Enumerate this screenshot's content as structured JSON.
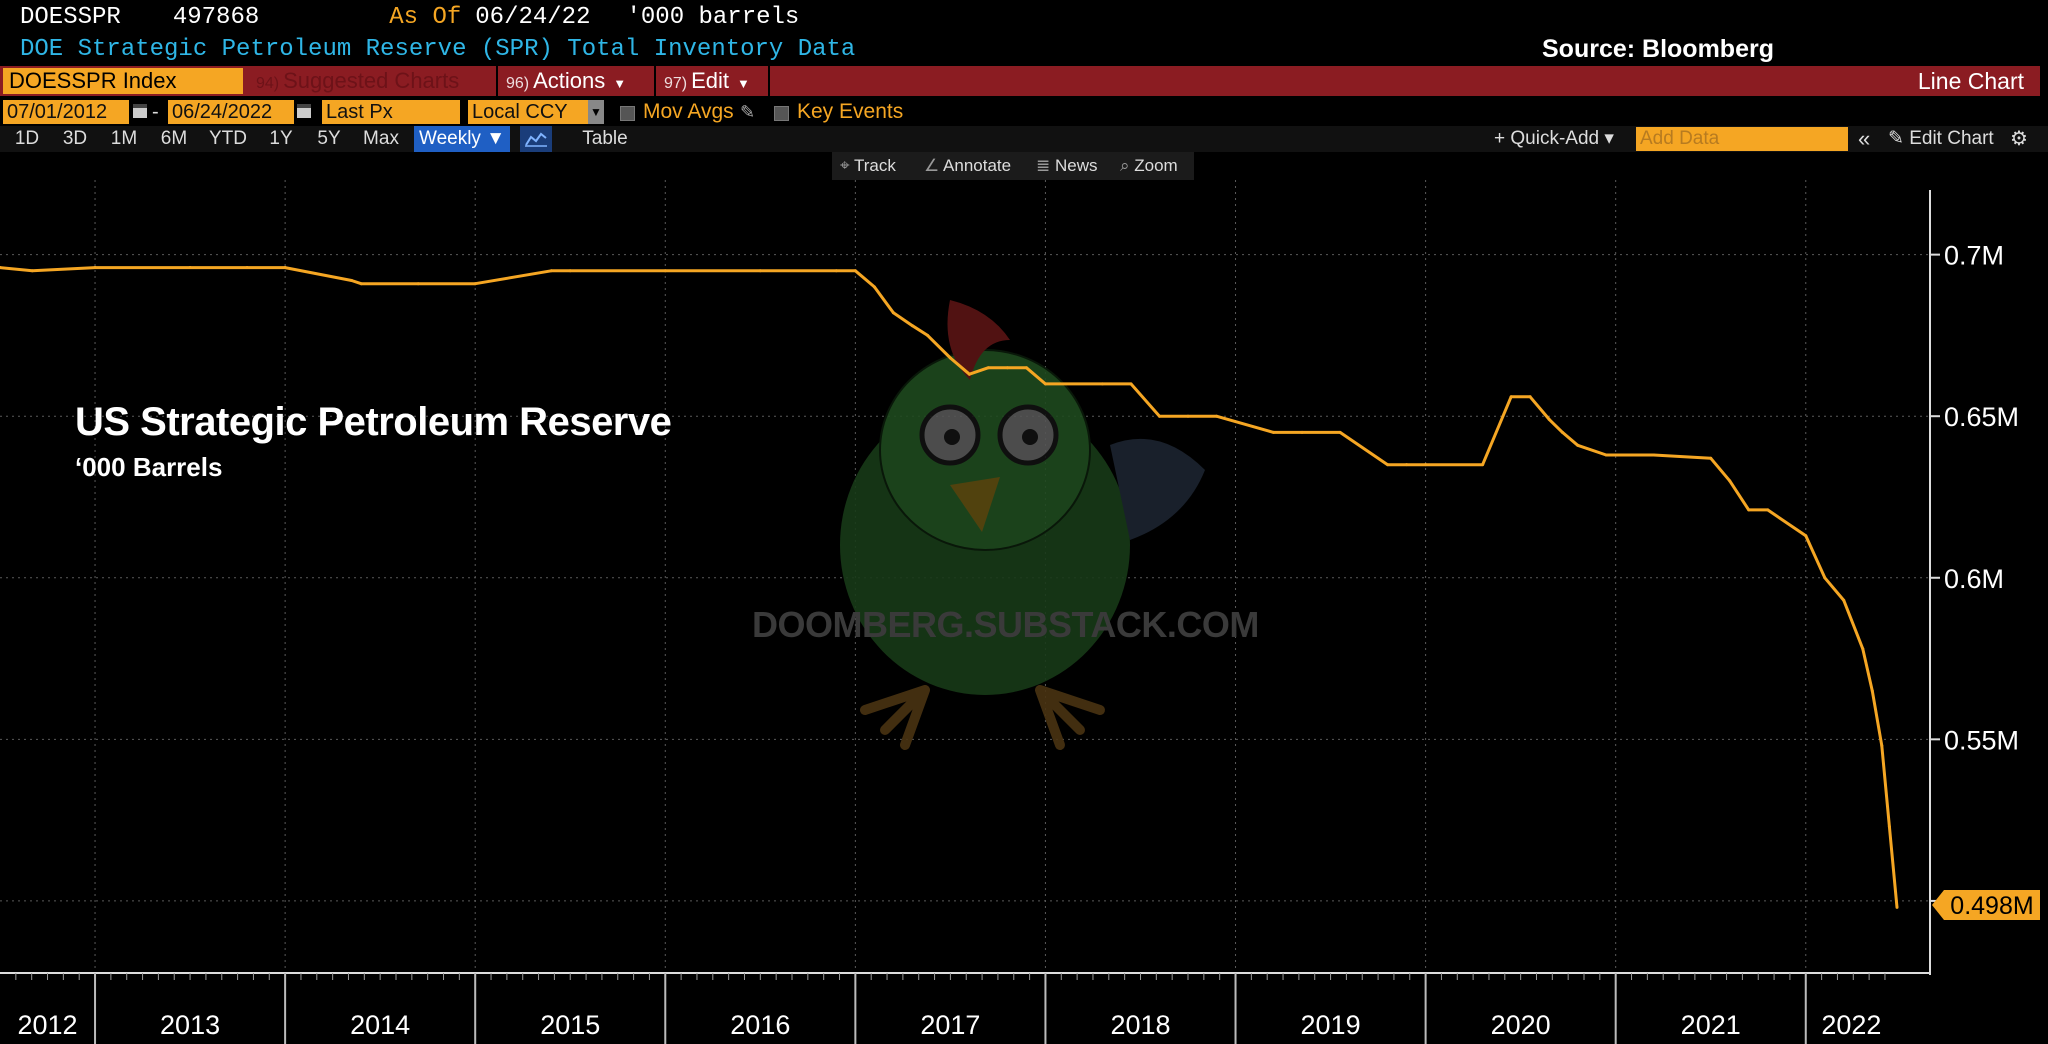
{
  "header": {
    "ticker": "DOESSPR",
    "last_value": "497868",
    "as_of_label": "As Of",
    "as_of_date": "06/24/22",
    "units": "'000 barrels",
    "description": "DOE Strategic Petroleum Reserve (SPR) Total Inventory Data",
    "source": "Source: Bloomberg"
  },
  "toolbar": {
    "index": "DOESSPR Index",
    "suggested_num": "94)",
    "suggested": "Suggested Charts",
    "actions_num": "96)",
    "actions": "Actions",
    "edit_num": "97)",
    "edit": "Edit",
    "chart_type": "Line Chart"
  },
  "controls": {
    "start_date": "07/01/2012",
    "end_date": "06/24/2022",
    "field": "Last Px",
    "currency": "Local CCY",
    "mov_avgs": "Mov Avgs",
    "key_events": "Key Events",
    "periods": [
      "1D",
      "3D",
      "1M",
      "6M",
      "YTD",
      "1Y",
      "5Y",
      "Max"
    ],
    "frequency": "Weekly ▼",
    "table": "Table",
    "quick_add": "+ Quick-Add ▾",
    "add_data_placeholder": "Add Data",
    "edit_chart": "Edit Chart"
  },
  "trackbar": {
    "track": "Track",
    "annotate": "Annotate",
    "news": "News",
    "zoom": "Zoom"
  },
  "overlay": {
    "watermark": "DOOMBERG.SUBSTACK.COM"
  },
  "colors": {
    "line": "#f5a623",
    "toolbar_red": "#8b1c22",
    "header_blue": "#2fb6e6",
    "accent_orange": "#f5a623"
  },
  "chart_data": {
    "type": "line",
    "title": "US Strategic Petroleum Reserve",
    "subtitle": "‘000 Barrels",
    "xlim": [
      2012.5,
      2022.48
    ],
    "ylim": [
      0.478,
      0.72
    ],
    "y_unit": "M barrels",
    "y_ticks": [
      0.5,
      0.55,
      0.6,
      0.65,
      0.7
    ],
    "y_tick_labels": [
      "0.5M",
      "0.55M",
      "0.6M",
      "0.65M",
      "0.7M"
    ],
    "x_tick_labels": [
      "2012",
      "2013",
      "2014",
      "2015",
      "2016",
      "2017",
      "2018",
      "2019",
      "2020",
      "2021",
      "2022"
    ],
    "last_value_label": "0.498M",
    "grid": true,
    "series": [
      {
        "x": [
          2012.5,
          2012.67,
          2013.0,
          2013.5,
          2013.8,
          2014.0,
          2014.35,
          2014.4,
          2014.7,
          2015.0,
          2015.4,
          2015.5,
          2016.0,
          2016.5,
          2016.9,
          2017.0,
          2017.1,
          2017.2,
          2017.3,
          2017.38,
          2017.5,
          2017.6,
          2017.7,
          2017.8,
          2017.9,
          2018.0,
          2018.3,
          2018.45,
          2018.6,
          2018.75,
          2018.9,
          2019.2,
          2019.35,
          2019.55,
          2019.8,
          2019.9,
          2020.0,
          2020.3,
          2020.45,
          2020.55,
          2020.65,
          2020.72,
          2020.8,
          2020.95,
          2021.1,
          2021.2,
          2021.5,
          2021.6,
          2021.7,
          2021.8,
          2022.0,
          2022.1,
          2022.2,
          2022.3,
          2022.35,
          2022.4,
          2022.44,
          2022.48
        ],
        "y": [
          0.696,
          0.695,
          0.696,
          0.696,
          0.696,
          0.696,
          0.692,
          0.691,
          0.691,
          0.691,
          0.695,
          0.695,
          0.695,
          0.695,
          0.695,
          0.695,
          0.69,
          0.682,
          0.678,
          0.675,
          0.668,
          0.663,
          0.665,
          0.665,
          0.665,
          0.66,
          0.66,
          0.66,
          0.65,
          0.65,
          0.65,
          0.645,
          0.645,
          0.645,
          0.635,
          0.635,
          0.635,
          0.635,
          0.656,
          0.656,
          0.649,
          0.645,
          0.641,
          0.638,
          0.638,
          0.638,
          0.637,
          0.63,
          0.621,
          0.621,
          0.613,
          0.6,
          0.593,
          0.578,
          0.565,
          0.548,
          0.523,
          0.498
        ]
      }
    ]
  }
}
